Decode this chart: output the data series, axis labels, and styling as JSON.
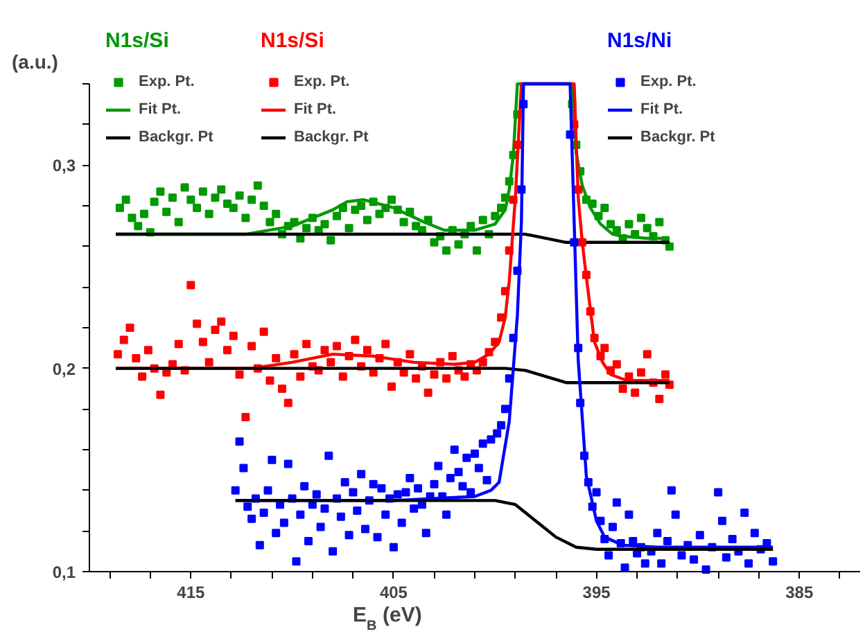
{
  "chart_data": {
    "type": "scatter",
    "xlabel": "E$_{B}$ (eV)",
    "ylabel": "(a.u.)",
    "annotations": [
      "N1s/Si",
      "N1s/Si",
      "N1s/Ni"
    ],
    "xlim": [
      420,
      382
    ],
    "ylim": [
      0.1,
      0.34
    ],
    "xticks": [
      {
        "value": 419,
        "label": null
      },
      {
        "value": 417,
        "label": null
      },
      415,
      {
        "value": 413,
        "label": null
      },
      {
        "value": 411,
        "label": null
      },
      {
        "value": 409,
        "label": null
      },
      {
        "value": 407,
        "label": null
      },
      405,
      {
        "value": 403,
        "label": null
      },
      {
        "value": 401,
        "label": null
      },
      {
        "value": 399,
        "label": null
      },
      {
        "value": 397,
        "label": null
      },
      395,
      {
        "value": 393,
        "label": null
      },
      {
        "value": 391,
        "label": null
      },
      {
        "value": 389,
        "label": null
      },
      {
        "value": 387,
        "label": null
      },
      385,
      {
        "value": 383,
        "label": null
      }
    ],
    "yticks": [
      {
        "value": 0.1,
        "label": "0,1"
      },
      {
        "value": 0.12,
        "label": null
      },
      {
        "value": 0.14,
        "label": null
      },
      {
        "value": 0.16,
        "label": null
      },
      {
        "value": 0.18,
        "label": null
      },
      {
        "value": 0.2,
        "label": "0,2"
      },
      {
        "value": 0.22,
        "label": null
      },
      {
        "value": 0.24,
        "label": null
      },
      {
        "value": 0.26,
        "label": null
      },
      {
        "value": 0.28,
        "label": null
      },
      {
        "value": 0.3,
        "label": "0,3"
      },
      {
        "value": 0.32,
        "label": null
      },
      {
        "value": 0.34,
        "label": null
      }
    ],
    "grid": false,
    "legend": "top",
    "line_style": "solid",
    "series": [
      {
        "name": "Exp. Pt.",
        "type": "scatter",
        "marker": "square",
        "color": "#009900",
        "x": [
          418.5,
          418.2,
          417.9,
          417.6,
          417.3,
          417.0,
          416.8,
          416.5,
          416.2,
          415.9,
          415.6,
          415.3,
          415.0,
          414.7,
          414.4,
          414.1,
          413.8,
          413.5,
          413.2,
          412.9,
          412.6,
          412.3,
          412.0,
          411.7,
          411.4,
          411.1,
          410.8,
          410.5,
          410.2,
          409.9,
          409.6,
          409.3,
          409.0,
          408.7,
          408.4,
          408.1,
          407.8,
          407.5,
          407.2,
          406.9,
          406.6,
          406.3,
          406.0,
          405.7,
          405.4,
          405.1,
          404.8,
          404.5,
          404.2,
          403.9,
          403.6,
          403.3,
          403.0,
          402.7,
          402.4,
          402.1,
          401.8,
          401.5,
          401.2,
          400.9,
          400.6,
          400.3,
          400.0,
          399.7,
          399.5,
          399.3,
          399.1,
          398.9,
          396.2,
          396.0,
          395.8,
          395.5,
          395.2,
          394.9,
          394.6,
          394.3,
          394.0,
          393.7,
          393.4,
          393.1,
          392.8,
          392.5,
          392.2,
          391.9,
          391.6,
          391.4
        ],
        "values": [
          0.279,
          0.283,
          0.274,
          0.27,
          0.276,
          0.267,
          0.282,
          0.287,
          0.277,
          0.284,
          0.272,
          0.289,
          0.283,
          0.279,
          0.287,
          0.276,
          0.284,
          0.288,
          0.281,
          0.279,
          0.285,
          0.274,
          0.283,
          0.29,
          0.28,
          0.272,
          0.276,
          0.266,
          0.27,
          0.272,
          0.264,
          0.269,
          0.274,
          0.268,
          0.271,
          0.263,
          0.275,
          0.279,
          0.269,
          0.278,
          0.28,
          0.273,
          0.282,
          0.276,
          0.279,
          0.283,
          0.278,
          0.272,
          0.277,
          0.27,
          0.268,
          0.273,
          0.262,
          0.265,
          0.258,
          0.268,
          0.261,
          0.266,
          0.27,
          0.258,
          0.273,
          0.266,
          0.275,
          0.279,
          0.284,
          0.292,
          0.305,
          0.325,
          0.33,
          0.31,
          0.297,
          0.283,
          0.281,
          0.275,
          0.279,
          0.271,
          0.268,
          0.264,
          0.271,
          0.266,
          0.274,
          0.269,
          0.265,
          0.272,
          0.263,
          0.26
        ]
      },
      {
        "name": "Fit Pt.",
        "type": "line",
        "color": "#009900",
        "x": [
          418.7,
          412.3,
          410,
          408,
          407.3,
          406.5,
          405,
          403.5,
          402.5,
          401,
          400,
          399.5,
          399.3,
          399.1,
          398.9,
          396.2,
          396.0,
          395.7,
          395.3,
          394.8,
          394.2,
          393.7,
          392.5,
          391.4
        ],
        "values": [
          0.266,
          0.266,
          0.27,
          0.278,
          0.282,
          0.283,
          0.279,
          0.272,
          0.268,
          0.268,
          0.271,
          0.278,
          0.288,
          0.305,
          0.34,
          0.34,
          0.306,
          0.29,
          0.279,
          0.271,
          0.266,
          0.265,
          0.264,
          0.264
        ]
      },
      {
        "name": "Backgr. Pt",
        "type": "line",
        "color": "#000000",
        "x": [
          418.7,
          399.5,
          398.5,
          397.5,
          396.5,
          391.4
        ],
        "values": [
          0.266,
          0.266,
          0.266,
          0.264,
          0.262,
          0.262
        ]
      },
      {
        "name": "Exp. Pt.",
        "type": "scatter",
        "marker": "square",
        "color": "#ff0000",
        "x": [
          418.6,
          418.3,
          418.0,
          417.7,
          417.4,
          417.1,
          416.8,
          416.5,
          416.2,
          415.9,
          415.6,
          415.3,
          415.0,
          414.7,
          414.4,
          414.1,
          413.8,
          413.5,
          413.2,
          412.9,
          412.6,
          412.3,
          412.0,
          411.7,
          411.4,
          411.1,
          410.8,
          410.5,
          410.2,
          409.9,
          409.6,
          409.3,
          409.0,
          408.7,
          408.4,
          408.1,
          407.8,
          407.5,
          407.2,
          406.9,
          406.6,
          406.3,
          406.0,
          405.7,
          405.4,
          405.1,
          404.8,
          404.5,
          404.2,
          403.9,
          403.6,
          403.3,
          403.0,
          402.7,
          402.4,
          402.1,
          401.8,
          401.5,
          401.2,
          400.9,
          400.6,
          400.3,
          400.0,
          399.7,
          399.5,
          399.3,
          399.1,
          398.9,
          396.1,
          395.9,
          395.7,
          395.5,
          395.3,
          395.1,
          394.8,
          394.6,
          394.3,
          394.0,
          393.7,
          393.4,
          393.1,
          392.8,
          392.5,
          392.2,
          391.9,
          391.6,
          391.4
        ],
        "values": [
          0.207,
          0.214,
          0.22,
          0.205,
          0.196,
          0.209,
          0.2,
          0.187,
          0.198,
          0.202,
          0.212,
          0.199,
          0.241,
          0.222,
          0.213,
          0.203,
          0.219,
          0.223,
          0.209,
          0.216,
          0.197,
          0.176,
          0.211,
          0.2,
          0.218,
          0.194,
          0.205,
          0.19,
          0.183,
          0.207,
          0.196,
          0.212,
          0.201,
          0.199,
          0.209,
          0.203,
          0.211,
          0.196,
          0.206,
          0.214,
          0.201,
          0.209,
          0.198,
          0.205,
          0.212,
          0.191,
          0.203,
          0.198,
          0.207,
          0.195,
          0.201,
          0.188,
          0.197,
          0.203,
          0.195,
          0.206,
          0.199,
          0.196,
          0.202,
          0.199,
          0.203,
          0.208,
          0.213,
          0.225,
          0.238,
          0.258,
          0.283,
          0.31,
          0.32,
          0.288,
          0.262,
          0.246,
          0.228,
          0.215,
          0.206,
          0.21,
          0.199,
          0.202,
          0.19,
          0.196,
          0.188,
          0.198,
          0.207,
          0.193,
          0.185,
          0.197,
          0.192
        ]
      },
      {
        "name": "Fit Pt.",
        "type": "line",
        "color": "#ff0000",
        "x": [
          418.7,
          412,
          410,
          408,
          406,
          404,
          402,
          401,
          400.3,
          399.8,
          399.5,
          399.3,
          399.0,
          398.7,
          396.1,
          395.9,
          395.7,
          395.5,
          395.1,
          394.7,
          394.3,
          393.5,
          391.4
        ],
        "values": [
          0.2,
          0.2,
          0.203,
          0.207,
          0.206,
          0.203,
          0.202,
          0.203,
          0.207,
          0.213,
          0.225,
          0.243,
          0.284,
          0.34,
          0.34,
          0.284,
          0.262,
          0.245,
          0.213,
          0.203,
          0.197,
          0.194,
          0.194
        ]
      },
      {
        "name": "Backgr. Pt",
        "type": "line",
        "color": "#000000",
        "x": [
          418.7,
          399.5,
          398.5,
          397.5,
          396.5,
          391.4
        ],
        "values": [
          0.2,
          0.2,
          0.199,
          0.196,
          0.193,
          0.193
        ]
      },
      {
        "name": "Exp. Pt.",
        "type": "scatter",
        "marker": "square",
        "color": "#0000ff",
        "x": [
          412.8,
          412.6,
          412.4,
          412.2,
          412.0,
          411.8,
          411.6,
          411.4,
          411.2,
          411.0,
          410.8,
          410.6,
          410.4,
          410.2,
          410.0,
          409.8,
          409.6,
          409.4,
          409.2,
          409.0,
          408.8,
          408.6,
          408.4,
          408.2,
          408.0,
          407.8,
          407.6,
          407.4,
          407.2,
          407.0,
          406.8,
          406.6,
          406.4,
          406.2,
          406.0,
          405.8,
          405.6,
          405.4,
          405.2,
          405.0,
          404.8,
          404.6,
          404.4,
          404.2,
          404.0,
          403.8,
          403.6,
          403.4,
          403.2,
          403.0,
          402.8,
          402.6,
          402.4,
          402.2,
          402.0,
          401.8,
          401.6,
          401.4,
          401.2,
          401.0,
          400.8,
          400.6,
          400.4,
          400.2,
          399.9,
          399.7,
          399.5,
          399.3,
          399.1,
          398.9,
          398.7,
          398.6,
          396.3,
          396.1,
          395.9,
          395.8,
          395.6,
          395.4,
          395.2,
          395.0,
          394.8,
          394.6,
          394.4,
          394.2,
          394.0,
          393.8,
          393.6,
          393.4,
          393.2,
          393.0,
          392.8,
          392.6,
          392.3,
          392.0,
          391.8,
          391.5,
          391.3,
          391.1,
          390.8,
          390.5,
          390.2,
          389.9,
          389.6,
          389.3,
          389.0,
          388.8,
          388.6,
          388.3,
          388.0,
          387.7,
          387.5,
          387.2,
          386.9,
          386.6,
          386.3
        ],
        "values": [
          0.14,
          0.164,
          0.151,
          0.132,
          0.126,
          0.136,
          0.113,
          0.129,
          0.14,
          0.155,
          0.119,
          0.133,
          0.124,
          0.153,
          0.136,
          0.105,
          0.128,
          0.142,
          0.115,
          0.133,
          0.138,
          0.122,
          0.131,
          0.157,
          0.11,
          0.136,
          0.127,
          0.144,
          0.118,
          0.139,
          0.13,
          0.148,
          0.121,
          0.135,
          0.143,
          0.117,
          0.141,
          0.128,
          0.136,
          0.112,
          0.138,
          0.124,
          0.139,
          0.146,
          0.131,
          0.141,
          0.133,
          0.119,
          0.137,
          0.143,
          0.152,
          0.137,
          0.128,
          0.146,
          0.16,
          0.149,
          0.142,
          0.156,
          0.139,
          0.158,
          0.151,
          0.163,
          0.145,
          0.165,
          0.168,
          0.172,
          0.18,
          0.195,
          0.215,
          0.248,
          0.288,
          0.33,
          0.315,
          0.262,
          0.21,
          0.183,
          0.157,
          0.144,
          0.132,
          0.139,
          0.125,
          0.116,
          0.108,
          0.122,
          0.134,
          0.114,
          0.102,
          0.128,
          0.115,
          0.109,
          0.112,
          0.104,
          0.11,
          0.119,
          0.104,
          0.115,
          0.14,
          0.128,
          0.108,
          0.113,
          0.106,
          0.118,
          0.101,
          0.112,
          0.139,
          0.125,
          0.107,
          0.116,
          0.11,
          0.129,
          0.104,
          0.119,
          0.111,
          0.114,
          0.105
        ]
      },
      {
        "name": "Fit Pt.",
        "type": "line",
        "color": "#0000ff",
        "x": [
          412.8,
          405,
          401,
          400.2,
          399.8,
          399.3,
          398.9,
          398.7,
          398.6,
          396.3,
          396.1,
          395.9,
          395.5,
          395.0,
          394.6,
          393.7,
          392,
          386.3
        ],
        "values": [
          0.135,
          0.135,
          0.137,
          0.14,
          0.144,
          0.174,
          0.226,
          0.272,
          0.34,
          0.34,
          0.272,
          0.204,
          0.147,
          0.125,
          0.117,
          0.113,
          0.112,
          0.112
        ]
      },
      {
        "name": "Backgr. Pt",
        "type": "line",
        "color": "#000000",
        "x": [
          412.8,
          400,
          399,
          398,
          397,
          396,
          395,
          386.3
        ],
        "values": [
          0.135,
          0.135,
          0.133,
          0.125,
          0.117,
          0.112,
          0.111,
          0.111
        ]
      }
    ]
  }
}
